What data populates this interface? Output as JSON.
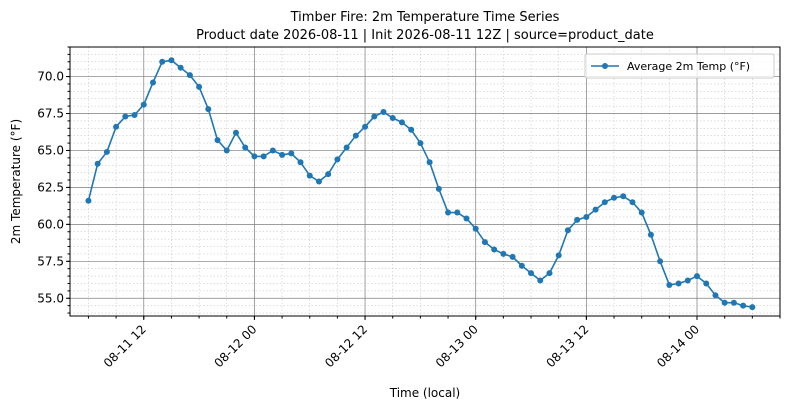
{
  "chart_data": {
    "type": "line",
    "title": "Timber Fire: 2m Temperature Time Series",
    "subtitle": "Product date 2026-08-11 | Init 2026-08-11 12Z | source=product_date",
    "xlabel": "Time (local)",
    "ylabel": "2m Temperature (°F)",
    "legend": {
      "position": "top-right"
    },
    "grid": {
      "major": true,
      "minor": true
    },
    "xlim": [
      "2026-08-11 04:00",
      "2026-08-14 09:00"
    ],
    "ylim": [
      53.8,
      72.0
    ],
    "x_ticks": [
      "2026-08-11 12:00",
      "2026-08-12 00:00",
      "2026-08-12 12:00",
      "2026-08-13 00:00",
      "2026-08-13 12:00",
      "2026-08-14 00:00"
    ],
    "x_tick_labels": [
      "08-11 12",
      "08-12 00",
      "08-12 12",
      "08-13 00",
      "08-13 12",
      "08-14 00"
    ],
    "y_ticks": [
      55.0,
      57.5,
      60.0,
      62.5,
      65.0,
      67.5,
      70.0
    ],
    "y_tick_labels": [
      "55.0",
      "57.5",
      "60.0",
      "62.5",
      "65.0",
      "67.5",
      "70.0"
    ],
    "series": [
      {
        "name": "Average 2m Temp (°F)",
        "color": "#1f77b4",
        "marker": "circle",
        "x": [
          "2026-08-11 06:00",
          "2026-08-11 07:00",
          "2026-08-11 08:00",
          "2026-08-11 09:00",
          "2026-08-11 10:00",
          "2026-08-11 11:00",
          "2026-08-11 12:00",
          "2026-08-11 13:00",
          "2026-08-11 14:00",
          "2026-08-11 15:00",
          "2026-08-11 16:00",
          "2026-08-11 17:00",
          "2026-08-11 18:00",
          "2026-08-11 19:00",
          "2026-08-11 20:00",
          "2026-08-11 21:00",
          "2026-08-11 22:00",
          "2026-08-11 23:00",
          "2026-08-12 00:00",
          "2026-08-12 01:00",
          "2026-08-12 02:00",
          "2026-08-12 03:00",
          "2026-08-12 04:00",
          "2026-08-12 05:00",
          "2026-08-12 06:00",
          "2026-08-12 07:00",
          "2026-08-12 08:00",
          "2026-08-12 09:00",
          "2026-08-12 10:00",
          "2026-08-12 11:00",
          "2026-08-12 12:00",
          "2026-08-12 13:00",
          "2026-08-12 14:00",
          "2026-08-12 15:00",
          "2026-08-12 16:00",
          "2026-08-12 17:00",
          "2026-08-12 18:00",
          "2026-08-12 19:00",
          "2026-08-12 20:00",
          "2026-08-12 21:00",
          "2026-08-12 22:00",
          "2026-08-12 23:00",
          "2026-08-13 00:00",
          "2026-08-13 01:00",
          "2026-08-13 02:00",
          "2026-08-13 03:00",
          "2026-08-13 04:00",
          "2026-08-13 05:00",
          "2026-08-13 06:00",
          "2026-08-13 07:00",
          "2026-08-13 08:00",
          "2026-08-13 09:00",
          "2026-08-13 10:00",
          "2026-08-13 11:00",
          "2026-08-13 12:00",
          "2026-08-13 13:00",
          "2026-08-13 14:00",
          "2026-08-13 15:00",
          "2026-08-13 16:00",
          "2026-08-13 17:00",
          "2026-08-13 18:00",
          "2026-08-13 19:00",
          "2026-08-13 20:00",
          "2026-08-13 21:00",
          "2026-08-13 22:00",
          "2026-08-13 23:00",
          "2026-08-14 00:00",
          "2026-08-14 01:00",
          "2026-08-14 02:00",
          "2026-08-14 03:00",
          "2026-08-14 04:00",
          "2026-08-14 05:00",
          "2026-08-14 06:00"
        ],
        "y": [
          61.6,
          64.1,
          64.9,
          66.6,
          67.3,
          67.4,
          68.1,
          69.6,
          71.0,
          71.1,
          70.6,
          70.1,
          69.3,
          67.8,
          65.7,
          65.0,
          66.2,
          65.2,
          64.6,
          64.6,
          65.0,
          64.7,
          64.8,
          64.2,
          63.3,
          62.9,
          63.4,
          64.4,
          65.2,
          66.0,
          66.6,
          67.3,
          67.6,
          67.2,
          66.9,
          66.4,
          65.5,
          64.2,
          62.4,
          60.8,
          60.8,
          60.4,
          59.7,
          58.8,
          58.3,
          58.0,
          57.8,
          57.2,
          56.7,
          56.2,
          56.7,
          57.9,
          59.6,
          60.3,
          60.5,
          61.0,
          61.5,
          61.8,
          61.9,
          61.5,
          60.8,
          59.3,
          57.5,
          55.9,
          56.0,
          56.2,
          56.5,
          56.0,
          55.2,
          54.7,
          54.7,
          54.5,
          54.4
        ]
      }
    ]
  }
}
